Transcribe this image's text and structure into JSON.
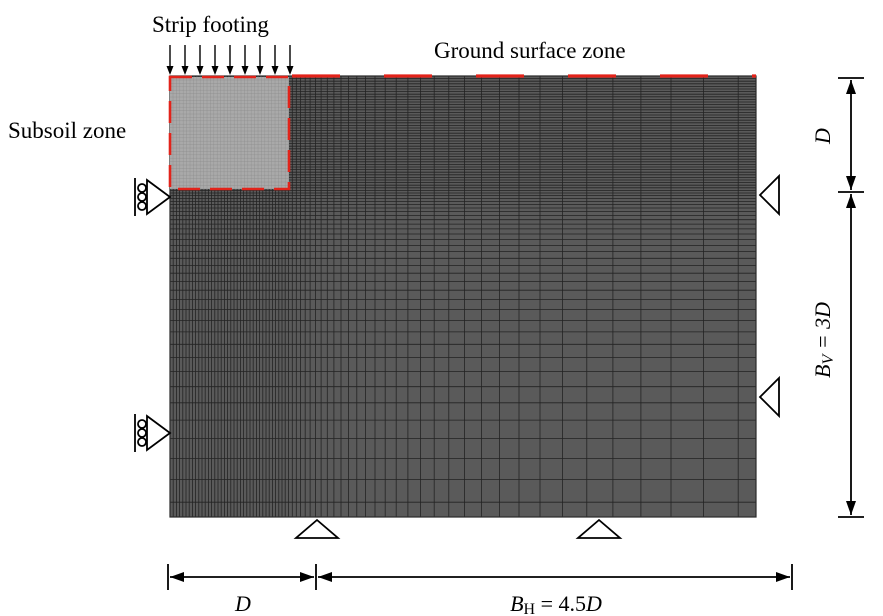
{
  "labels": {
    "strip_footing": "Strip footing",
    "ground_surface_zone": "Ground surface zone",
    "subsoil_zone": "Subsoil zone"
  },
  "dimensions": {
    "depth_symbol": "D",
    "vertical_symbol": "B",
    "vertical_subscript": "V",
    "vertical_equation": " = 3D",
    "horizontal_left_symbol": "D",
    "horizontal_symbol": "B",
    "horizontal_subscript": "H",
    "horizontal_equation": " = 4.5",
    "horizontal_equation_unit": "D"
  },
  "colors": {
    "mesh_fill": "#5a5a5a",
    "mesh_line": "#232323",
    "subsoil_fill": "#a9a9a9",
    "zone_dash": "#e2231a"
  }
}
